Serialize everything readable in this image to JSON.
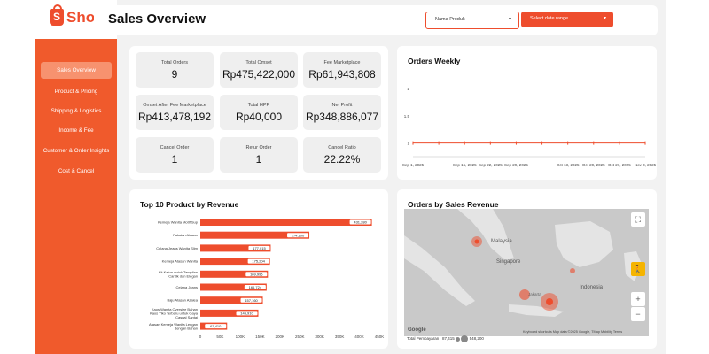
{
  "brand": {
    "logo_letter": "S",
    "name": "Shopee"
  },
  "nav": {
    "items": [
      {
        "label": "Sales Overview",
        "active": true
      },
      {
        "label": "Product & Pricing",
        "active": false
      },
      {
        "label": "Shipping & Logistics",
        "active": false
      },
      {
        "label": "Income & Fee",
        "active": false
      },
      {
        "label": "Customer & Order Insights",
        "active": false
      },
      {
        "label": "Cost & Cancel",
        "active": false
      }
    ]
  },
  "header": {
    "title": "Sales Overview",
    "product_select": "Nama Produk",
    "date_select": "Select date range"
  },
  "kpis": [
    {
      "label": "Total Orders",
      "value": "9"
    },
    {
      "label": "Total Omset",
      "value": "Rp475,422,000"
    },
    {
      "label": "Fee Marketplace",
      "value": "Rp61,943,808"
    },
    {
      "label": "Omset After Fee Marketplace",
      "value": "Rp413,478,192"
    },
    {
      "label": "Total HPP",
      "value": "Rp40,000"
    },
    {
      "label": "Net Profit",
      "value": "Rp348,886,077"
    },
    {
      "label": "Cancel Order",
      "value": "1"
    },
    {
      "label": "Retur Order",
      "value": "1"
    },
    {
      "label": "Cancel Ratio",
      "value": "22.22%"
    }
  ],
  "chart_data": [
    {
      "type": "line",
      "title": "Orders Weekly",
      "x": [
        "Sep 1, 2025",
        "Sep 8, 2025",
        "Sep 15, 2025",
        "Sep 22, 2025",
        "Sep 29, 2025",
        "Oct 6, 2025",
        "Oct 13, 2025",
        "Oct 20, 2025",
        "Oct 27, 2025",
        "Nov 3, 2025"
      ],
      "x_tick_labels": [
        "Sep 1, 2025",
        "Sep 15, 2025",
        "Sep 22, 2025",
        "Sep 29, 2025",
        "Oct 13, 2025",
        "Oct 20, 2025",
        "Oct 27, 2025",
        "Nov 3, 2025"
      ],
      "y_ticks": [
        "2",
        "1.5",
        "1"
      ],
      "values": [
        1,
        1,
        1,
        1,
        1,
        1,
        1,
        1,
        1,
        1
      ],
      "ylim": [
        0.75,
        2
      ],
      "grid": false
    },
    {
      "type": "bar",
      "orientation": "horizontal",
      "title": "Top 10 Product by Revenue",
      "categories": [
        "Kemeja Wanita Motif Sup",
        "Pakaian Atasan",
        "Celana Jeans Wanita Slim",
        "Kemeja Atasan Wanita",
        "Kit Katun untuk Tampilan Cantik dan Elegan",
        "Celana Jeans",
        "Baju Atasan Azalea",
        "Kaos Wanita Oversize Bahan Kaos Yiko Terbaru untuk Gaya Casual Santai",
        "Atasan Kemeja Wanita Lengan dengan Bahan"
      ],
      "values": [
        431280,
        274100,
        177015,
        175204,
        169996,
        166724,
        157160,
        145910,
        67410
      ],
      "value_labels": [
        "431,280",
        "274,100",
        "177,015",
        "175,204",
        "169,996",
        "166,724",
        "157,160",
        "145,910",
        "67,410"
      ],
      "x_tick_labels": [
        "0",
        "50K",
        "100K",
        "150K",
        "200K",
        "250K",
        "300K",
        "350K",
        "400K",
        "450K"
      ],
      "xlim": [
        0,
        450000
      ]
    }
  ],
  "map": {
    "title": "Orders by Sales Revenue",
    "labels": {
      "malaysia": "Malaysia",
      "singapore": "Singapore",
      "indonesia": "Indonesia",
      "jakarta": "Jakarta"
    },
    "attribution": "Keyboard shortcuts   Map data ©2025 Google, TMap Mobility   Terms",
    "google": "Google",
    "legend_label": "Total Pembayaran",
    "legend_min": "87,415",
    "legend_max": "548,200"
  }
}
